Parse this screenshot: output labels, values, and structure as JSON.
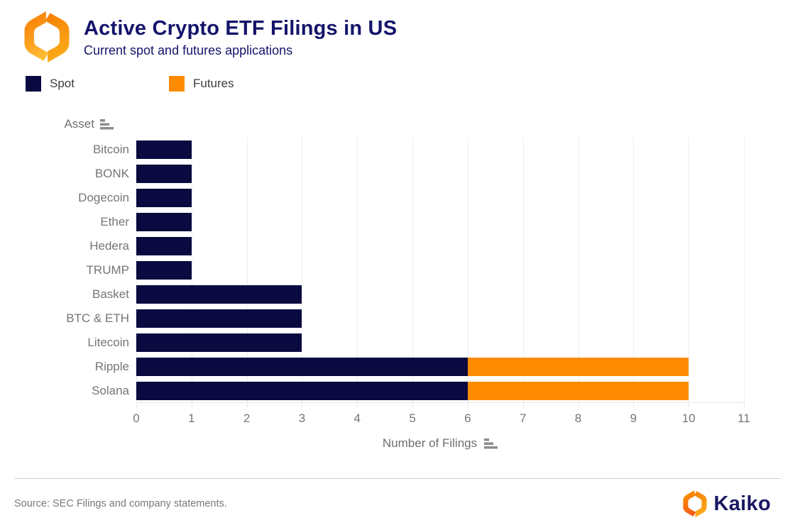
{
  "header": {
    "title": "Active Crypto ETF Filings in US",
    "subtitle": "Current spot and futures applications"
  },
  "legend": {
    "items": [
      {
        "label": "Spot",
        "color": "#0a0a40"
      },
      {
        "label": "Futures",
        "color": "#ff8c00"
      }
    ]
  },
  "axes": {
    "y_title": "Asset",
    "x_title": "Number of Filings"
  },
  "chart_data": {
    "type": "bar",
    "orientation": "horizontal",
    "stacked": true,
    "title": "Active Crypto ETF Filings in US",
    "subtitle": "Current spot and futures applications",
    "categories": [
      "Bitcoin",
      "BONK",
      "Dogecoin",
      "Ether",
      "Hedera",
      "TRUMP",
      "Basket",
      "BTC & ETH",
      "Litecoin",
      "Ripple",
      "Solana"
    ],
    "series": [
      {
        "name": "Spot",
        "color": "#0a0a40",
        "values": [
          1,
          1,
          1,
          1,
          1,
          1,
          3,
          3,
          3,
          6,
          6
        ]
      },
      {
        "name": "Futures",
        "color": "#ff8c00",
        "values": [
          0,
          0,
          0,
          0,
          0,
          0,
          0,
          0,
          0,
          4,
          4
        ]
      }
    ],
    "xlabel": "Number of Filings",
    "ylabel": "Asset",
    "xlim": [
      0,
      11
    ],
    "xticks": [
      0,
      1,
      2,
      3,
      4,
      5,
      6,
      7,
      8,
      9,
      10,
      11
    ],
    "grid": true,
    "legend_position": "top"
  },
  "footer": {
    "source": "Source: SEC Filings and company statements.",
    "brand": "Kaiko"
  },
  "colors": {
    "spot": "#0a0a40",
    "futures": "#ff8c00",
    "title_navy": "#14146b",
    "label_gray": "#757575",
    "gridline": "#ededed"
  }
}
